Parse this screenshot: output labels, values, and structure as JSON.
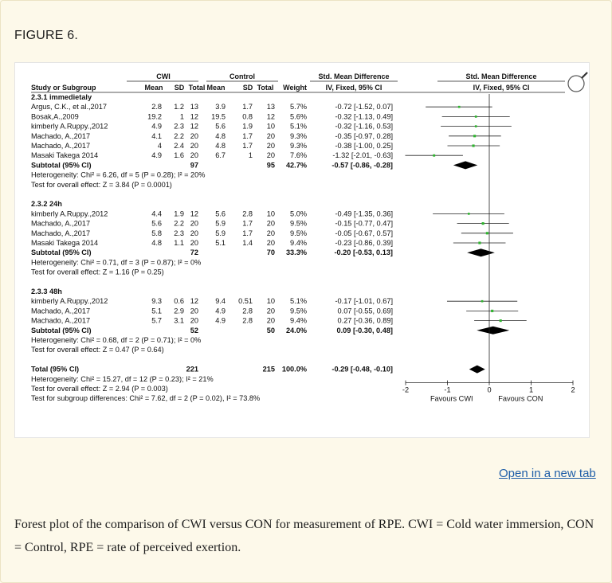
{
  "figure_label": "FIGURE 6.",
  "open_link": "Open in a new tab",
  "caption": "Forest plot of the comparison of CWI versus CON for measurement of RPE. CWI = Cold water immersion, CON = Control, RPE = rate of perceived exertion.",
  "colors": {
    "background": "#fdf9ea",
    "marker": "#2fb52f",
    "link": "#1f5ea8"
  },
  "icon": "magnifier-icon",
  "chart_data": {
    "type": "forest",
    "headers": {
      "group_exp": "CWI",
      "group_ctl": "Control",
      "smd": "Std. Mean Difference",
      "smd_plot": "Std. Mean Difference",
      "study": "Study or Subgroup",
      "mean": "Mean",
      "sd": "SD",
      "total": "Total",
      "weight": "Weight",
      "ci": "IV, Fixed, 95% CI",
      "ci_plot": "IV, Fixed, 95% CI"
    },
    "axis": {
      "ticks": [
        "-2",
        "-1",
        "0",
        "1",
        "2"
      ],
      "tick_values": [
        -2,
        -1,
        0,
        1,
        2
      ],
      "xlim": [
        -2,
        2
      ],
      "left_label": "Favours CWI",
      "right_label": "Favours CON"
    },
    "subgroups": [
      {
        "title": "2.3.1 immedietaly",
        "studies": [
          {
            "name": "Argus, C.K., et al.,2017",
            "m1": "2.8",
            "sd1": "1.2",
            "n1": "13",
            "m2": "3.9",
            "sd2": "1.7",
            "n2": "13",
            "weight": "5.7%",
            "ci_text": "-0.72 [-1.52, 0.07]",
            "est": -0.72,
            "lo": -1.52,
            "hi": 0.07
          },
          {
            "name": "Bosak,A.,2009",
            "m1": "19.2",
            "sd1": "1",
            "n1": "12",
            "m2": "19.5",
            "sd2": "0.8",
            "n2": "12",
            "weight": "5.6%",
            "ci_text": "-0.32 [-1.13, 0.49]",
            "est": -0.32,
            "lo": -1.13,
            "hi": 0.49
          },
          {
            "name": "kimberly A.Ruppy.,2012",
            "m1": "4.9",
            "sd1": "2.3",
            "n1": "12",
            "m2": "5.6",
            "sd2": "1.9",
            "n2": "10",
            "weight": "5.1%",
            "ci_text": "-0.32 [-1.16, 0.53]",
            "est": -0.32,
            "lo": -1.16,
            "hi": 0.53
          },
          {
            "name": "Machado, A.,2017",
            "m1": "4.1",
            "sd1": "2.2",
            "n1": "20",
            "m2": "4.8",
            "sd2": "1.7",
            "n2": "20",
            "weight": "9.3%",
            "ci_text": "-0.35 [-0.97, 0.28]",
            "est": -0.35,
            "lo": -0.97,
            "hi": 0.28
          },
          {
            "name": "Machado, A.,2017",
            "m1": "4",
            "sd1": "2.4",
            "n1": "20",
            "m2": "4.8",
            "sd2": "1.7",
            "n2": "20",
            "weight": "9.3%",
            "ci_text": "-0.38 [-1.00, 0.25]",
            "est": -0.38,
            "lo": -1.0,
            "hi": 0.25
          },
          {
            "name": "Masaki Takega 2014",
            "m1": "4.9",
            "sd1": "1.6",
            "n1": "20",
            "m2": "6.7",
            "sd2": "1",
            "n2": "20",
            "weight": "7.6%",
            "ci_text": "-1.32 [-2.01, -0.63]",
            "est": -1.32,
            "lo": -2.01,
            "hi": -0.63
          }
        ],
        "subtotal": {
          "label": "Subtotal (95% CI)",
          "n1": "97",
          "n2": "95",
          "weight": "42.7%",
          "ci_text": "-0.57 [-0.86, -0.28]",
          "est": -0.57,
          "lo": -0.86,
          "hi": -0.28
        },
        "heterogeneity": "Heterogeneity: Chi² = 6.26, df = 5 (P = 0.28); I² = 20%",
        "overall": "Test for overall effect: Z = 3.84 (P = 0.0001)"
      },
      {
        "title": "2.3.2 24h",
        "studies": [
          {
            "name": "kimberly A.Ruppy.,2012",
            "m1": "4.4",
            "sd1": "1.9",
            "n1": "12",
            "m2": "5.6",
            "sd2": "2.8",
            "n2": "10",
            "weight": "5.0%",
            "ci_text": "-0.49 [-1.35, 0.36]",
            "est": -0.49,
            "lo": -1.35,
            "hi": 0.36
          },
          {
            "name": "Machado, A.,2017",
            "m1": "5.6",
            "sd1": "2.2",
            "n1": "20",
            "m2": "5.9",
            "sd2": "1.7",
            "n2": "20",
            "weight": "9.5%",
            "ci_text": "-0.15 [-0.77, 0.47]",
            "est": -0.15,
            "lo": -0.77,
            "hi": 0.47
          },
          {
            "name": "Machado, A.,2017",
            "m1": "5.8",
            "sd1": "2.3",
            "n1": "20",
            "m2": "5.9",
            "sd2": "1.7",
            "n2": "20",
            "weight": "9.5%",
            "ci_text": "-0.05 [-0.67, 0.57]",
            "est": -0.05,
            "lo": -0.67,
            "hi": 0.57
          },
          {
            "name": "Masaki Takega 2014",
            "m1": "4.8",
            "sd1": "1.1",
            "n1": "20",
            "m2": "5.1",
            "sd2": "1.4",
            "n2": "20",
            "weight": "9.4%",
            "ci_text": "-0.23 [-0.86, 0.39]",
            "est": -0.23,
            "lo": -0.86,
            "hi": 0.39
          }
        ],
        "subtotal": {
          "label": "Subtotal (95% CI)",
          "n1": "72",
          "n2": "70",
          "weight": "33.3%",
          "ci_text": "-0.20 [-0.53, 0.13]",
          "est": -0.2,
          "lo": -0.53,
          "hi": 0.13
        },
        "heterogeneity": "Heterogeneity: Chi² = 0.71, df = 3 (P = 0.87); I² = 0%",
        "overall": "Test for overall effect: Z = 1.16 (P = 0.25)"
      },
      {
        "title": "2.3.3 48h",
        "studies": [
          {
            "name": "kimberly A.Ruppy.,2012",
            "m1": "9.3",
            "sd1": "0.6",
            "n1": "12",
            "m2": "9.4",
            "sd2": "0.51",
            "n2": "10",
            "weight": "5.1%",
            "ci_text": "-0.17 [-1.01, 0.67]",
            "est": -0.17,
            "lo": -1.01,
            "hi": 0.67
          },
          {
            "name": "Machado, A.,2017",
            "m1": "5.1",
            "sd1": "2.9",
            "n1": "20",
            "m2": "4.9",
            "sd2": "2.8",
            "n2": "20",
            "weight": "9.5%",
            "ci_text": "0.07 [-0.55, 0.69]",
            "est": 0.07,
            "lo": -0.55,
            "hi": 0.69
          },
          {
            "name": "Machado, A.,2017",
            "m1": "5.7",
            "sd1": "3.1",
            "n1": "20",
            "m2": "4.9",
            "sd2": "2.8",
            "n2": "20",
            "weight": "9.4%",
            "ci_text": "0.27 [-0.36, 0.89]",
            "est": 0.27,
            "lo": -0.36,
            "hi": 0.89
          }
        ],
        "subtotal": {
          "label": "Subtotal (95% CI)",
          "n1": "52",
          "n2": "50",
          "weight": "24.0%",
          "ci_text": "0.09 [-0.30, 0.48]",
          "est": 0.09,
          "lo": -0.3,
          "hi": 0.48
        },
        "heterogeneity": "Heterogeneity: Chi² = 0.68, df = 2 (P = 0.71); I² = 0%",
        "overall": "Test for overall effect: Z = 0.47 (P = 0.64)"
      }
    ],
    "total": {
      "label": "Total (95% CI)",
      "n1": "221",
      "n2": "215",
      "weight": "100.0%",
      "ci_text": "-0.29 [-0.48, -0.10]",
      "est": -0.29,
      "lo": -0.48,
      "hi": -0.1,
      "heterogeneity": "Heterogeneity: Chi² = 15.27, df = 12 (P = 0.23); I² = 21%",
      "overall": "Test for overall effect: Z = 2.94 (P = 0.003)",
      "subgroup_diff": "Test for subgroup differences: Chi² = 7.62, df = 2 (P = 0.02), I² = 73.8%"
    }
  }
}
